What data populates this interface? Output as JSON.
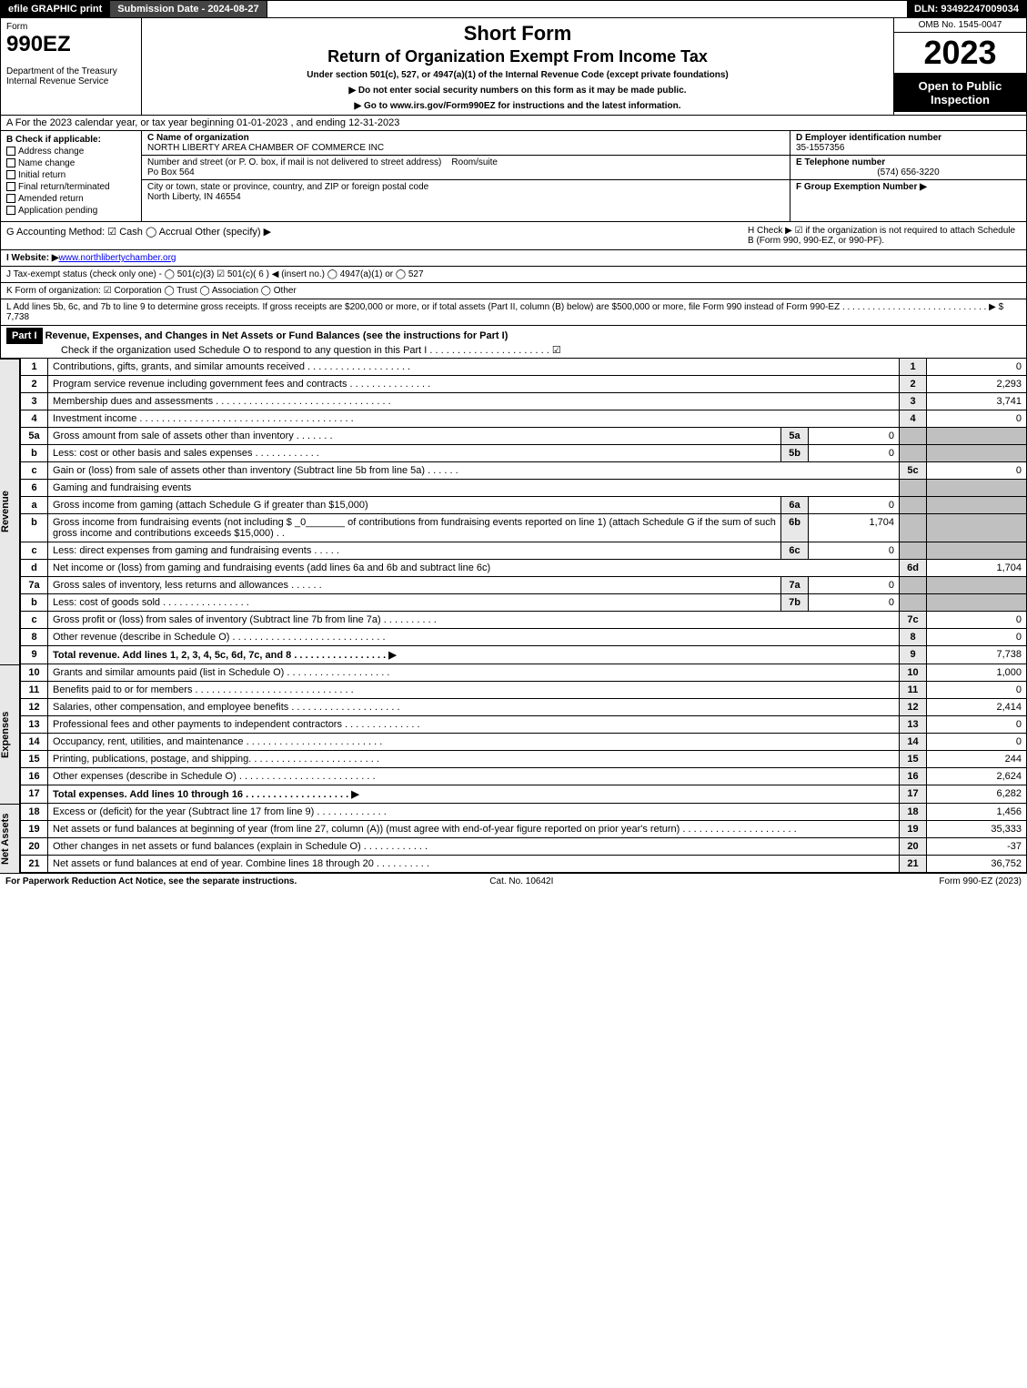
{
  "topbar": {
    "efile": "efile GRAPHIC print",
    "submission": "Submission Date - 2024-08-27",
    "dln": "DLN: 93492247009034"
  },
  "header": {
    "form_word": "Form",
    "form_no": "990EZ",
    "dept": "Department of the Treasury\nInternal Revenue Service",
    "title1": "Short Form",
    "title2": "Return of Organization Exempt From Income Tax",
    "subtitle": "Under section 501(c), 527, or 4947(a)(1) of the Internal Revenue Code (except private foundations)",
    "note1": "▶ Do not enter social security numbers on this form as it may be made public.",
    "note2": "▶ Go to www.irs.gov/Form990EZ for instructions and the latest information.",
    "omb": "OMB No. 1545-0047",
    "year": "2023",
    "open": "Open to Public Inspection"
  },
  "rowA": "A  For the 2023 calendar year, or tax year beginning 01-01-2023 , and ending 12-31-2023",
  "colB": {
    "title": "B  Check if applicable:",
    "items": [
      "Address change",
      "Name change",
      "Initial return",
      "Final return/terminated",
      "Amended return",
      "Application pending"
    ]
  },
  "colC": {
    "name_label": "C Name of organization",
    "name": "NORTH LIBERTY AREA CHAMBER OF COMMERCE INC",
    "street_label": "Number and street (or P. O. box, if mail is not delivered to street address)",
    "room_label": "Room/suite",
    "street": "Po Box 564",
    "city_label": "City or town, state or province, country, and ZIP or foreign postal code",
    "city": "North Liberty, IN  46554"
  },
  "colDEF": {
    "d_label": "D Employer identification number",
    "d_val": "35-1557356",
    "e_label": "E Telephone number",
    "e_val": "(574) 656-3220",
    "f_label": "F Group Exemption Number   ▶"
  },
  "rowG": {
    "left": "G Accounting Method:   ☑ Cash  ◯ Accrual  Other (specify) ▶",
    "h": "H  Check ▶  ☑ if the organization is not required to attach Schedule B (Form 990, 990-EZ, or 990-PF)."
  },
  "rowI": "I Website: ▶",
  "website": "www.northlibertychamber.org",
  "rowJ": "J Tax-exempt status (check only one) -  ◯ 501(c)(3)  ☑ 501(c)( 6 ) ◀ (insert no.)  ◯ 4947(a)(1) or  ◯ 527",
  "rowK": "K Form of organization:   ☑ Corporation  ◯ Trust  ◯ Association  ◯ Other",
  "rowL": {
    "text": "L Add lines 5b, 6c, and 7b to line 9 to determine gross receipts. If gross receipts are $200,000 or more, or if total assets (Part II, column (B) below) are $500,000 or more, file Form 990 instead of Form 990-EZ . . . . . . . . . . . . . . . . . . . . . . . . . . . . .  ▶ $",
    "val": "7,738"
  },
  "part1": {
    "label": "Part I",
    "title": "Revenue, Expenses, and Changes in Net Assets or Fund Balances (see the instructions for Part I)",
    "check": "Check if the organization used Schedule O to respond to any question in this Part I . . . . . . . . . . . . . . . . . . . . . .   ☑"
  },
  "lines": [
    {
      "n": "1",
      "desc": "Contributions, gifts, grants, and similar amounts received . . . . . . . . . . . . . . . . . . .",
      "rn": "1",
      "amt": "0"
    },
    {
      "n": "2",
      "desc": "Program service revenue including government fees and contracts . . . . . . . . . . . . . . .",
      "rn": "2",
      "amt": "2,293"
    },
    {
      "n": "3",
      "desc": "Membership dues and assessments . . . . . . . . . . . . . . . . . . . . . . . . . . . . . . . .",
      "rn": "3",
      "amt": "3,741"
    },
    {
      "n": "4",
      "desc": "Investment income . . . . . . . . . . . . . . . . . . . . . . . . . . . . . . . . . . . . . . .",
      "rn": "4",
      "amt": "0"
    },
    {
      "n": "5a",
      "desc": "Gross amount from sale of assets other than inventory . . . . . . .",
      "sub": "5a",
      "subval": "0"
    },
    {
      "n": "b",
      "desc": "Less: cost or other basis and sales expenses . . . . . . . . . . . .",
      "sub": "5b",
      "subval": "0"
    },
    {
      "n": "c",
      "desc": "Gain or (loss) from sale of assets other than inventory (Subtract line 5b from line 5a) . . . . . .",
      "rn": "5c",
      "amt": "0"
    },
    {
      "n": "6",
      "desc": "Gaming and fundraising events"
    },
    {
      "n": "a",
      "desc": "Gross income from gaming (attach Schedule G if greater than $15,000)",
      "sub": "6a",
      "subval": "0"
    },
    {
      "n": "b",
      "desc": "Gross income from fundraising events (not including $ _0_______ of contributions from fundraising events reported on line 1) (attach Schedule G if the sum of such gross income and contributions exceeds $15,000)  . .",
      "sub": "6b",
      "subval": "1,704"
    },
    {
      "n": "c",
      "desc": "Less: direct expenses from gaming and fundraising events  . . . . .",
      "sub": "6c",
      "subval": "0"
    },
    {
      "n": "d",
      "desc": "Net income or (loss) from gaming and fundraising events (add lines 6a and 6b and subtract line 6c)",
      "rn": "6d",
      "amt": "1,704"
    },
    {
      "n": "7a",
      "desc": "Gross sales of inventory, less returns and allowances . . . . . .",
      "sub": "7a",
      "subval": "0"
    },
    {
      "n": "b",
      "desc": "Less: cost of goods sold    . . . . . . . . . . . . . . . .",
      "sub": "7b",
      "subval": "0"
    },
    {
      "n": "c",
      "desc": "Gross profit or (loss) from sales of inventory (Subtract line 7b from line 7a) . . . . . . . . . .",
      "rn": "7c",
      "amt": "0"
    },
    {
      "n": "8",
      "desc": "Other revenue (describe in Schedule O) . . . . . . . . . . . . . . . . . . . . . . . . . . . .",
      "rn": "8",
      "amt": "0"
    },
    {
      "n": "9",
      "desc": "Total revenue. Add lines 1, 2, 3, 4, 5c, 6d, 7c, and 8  . . . . . . . . . . . . . . . . .    ▶",
      "rn": "9",
      "amt": "7,738",
      "bold": true
    }
  ],
  "exp": [
    {
      "n": "10",
      "desc": "Grants and similar amounts paid (list in Schedule O) . . . . . . . . . . . . . . . . . . .",
      "rn": "10",
      "amt": "1,000"
    },
    {
      "n": "11",
      "desc": "Benefits paid to or for members   . . . . . . . . . . . . . . . . . . . . . . . . . . . . .",
      "rn": "11",
      "amt": "0"
    },
    {
      "n": "12",
      "desc": "Salaries, other compensation, and employee benefits . . . . . . . . . . . . . . . . . . . .",
      "rn": "12",
      "amt": "2,414"
    },
    {
      "n": "13",
      "desc": "Professional fees and other payments to independent contractors . . . . . . . . . . . . . .",
      "rn": "13",
      "amt": "0"
    },
    {
      "n": "14",
      "desc": "Occupancy, rent, utilities, and maintenance . . . . . . . . . . . . . . . . . . . . . . . . .",
      "rn": "14",
      "amt": "0"
    },
    {
      "n": "15",
      "desc": "Printing, publications, postage, and shipping. . . . . . . . . . . . . . . . . . . . . . . .",
      "rn": "15",
      "amt": "244"
    },
    {
      "n": "16",
      "desc": "Other expenses (describe in Schedule O)   . . . . . . . . . . . . . . . . . . . . . . . . .",
      "rn": "16",
      "amt": "2,624"
    },
    {
      "n": "17",
      "desc": "Total expenses. Add lines 10 through 16   . . . . . . . . . . . . . . . . . . .    ▶",
      "rn": "17",
      "amt": "6,282",
      "bold": true
    }
  ],
  "net": [
    {
      "n": "18",
      "desc": "Excess or (deficit) for the year (Subtract line 17 from line 9)    . . . . . . . . . . . . .",
      "rn": "18",
      "amt": "1,456"
    },
    {
      "n": "19",
      "desc": "Net assets or fund balances at beginning of year (from line 27, column (A)) (must agree with end-of-year figure reported on prior year's return) . . . . . . . . . . . . . . . . . . . . .",
      "rn": "19",
      "amt": "35,333"
    },
    {
      "n": "20",
      "desc": "Other changes in net assets or fund balances (explain in Schedule O) . . . . . . . . . . . .",
      "rn": "20",
      "amt": "-37"
    },
    {
      "n": "21",
      "desc": "Net assets or fund balances at end of year. Combine lines 18 through 20 . . . . . . . . . .",
      "rn": "21",
      "amt": "36,752"
    }
  ],
  "side_labels": {
    "rev": "Revenue",
    "exp": "Expenses",
    "net": "Net Assets"
  },
  "footer": {
    "left": "For Paperwork Reduction Act Notice, see the separate instructions.",
    "mid": "Cat. No. 10642I",
    "right": "Form 990-EZ (2023)"
  }
}
